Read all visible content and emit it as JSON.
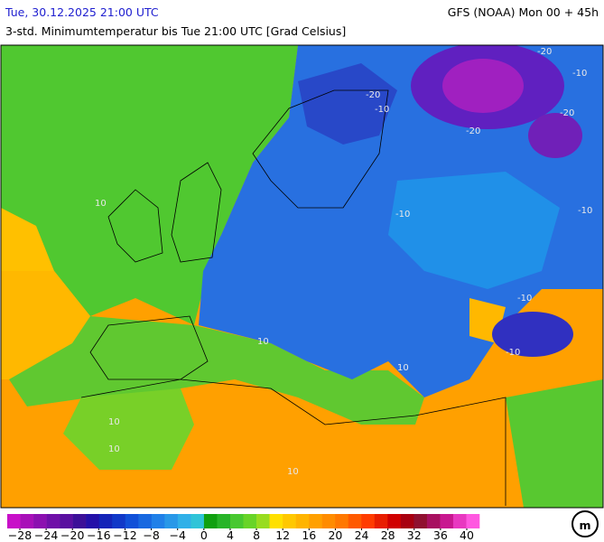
{
  "header": {
    "valid_time": "Tue, 30.12.2025 21:00 UTC",
    "model_run": "GFS (NOAA) Mon 00 + 45h",
    "description": "3-std. Minimumtemperatur bis Tue 21:00 UTC [Grad Celsius]"
  },
  "map": {
    "contour_labels": [
      -20,
      -10,
      -20,
      -10,
      -20,
      -20,
      -10,
      -10,
      10,
      -10,
      -10,
      10,
      10,
      10,
      10,
      10
    ]
  },
  "colorbar": {
    "colors": [
      "#c810c8",
      "#a810b8",
      "#8c10b0",
      "#7010a8",
      "#5a10a0",
      "#3c1098",
      "#2410a8",
      "#1424b8",
      "#1038c8",
      "#1050d8",
      "#1868e0",
      "#2080e8",
      "#2898e8",
      "#30b0e8",
      "#30c4d8",
      "#10a010",
      "#28b428",
      "#48c830",
      "#68d428",
      "#98dc20",
      "#ffe000",
      "#ffc800",
      "#ffb400",
      "#ffa000",
      "#ff8c00",
      "#ff7800",
      "#ff5a00",
      "#ff3c00",
      "#e81e00",
      "#d00000",
      "#a80010",
      "#901030",
      "#a81060",
      "#c81890",
      "#e838c0",
      "#ff58e0"
    ],
    "ticks": [
      {
        "value": -28,
        "label": "−28"
      },
      {
        "value": -24,
        "label": "−24"
      },
      {
        "value": -20,
        "label": "−20"
      },
      {
        "value": -16,
        "label": "−16"
      },
      {
        "value": -12,
        "label": "−12"
      },
      {
        "value": -8,
        "label": "−8"
      },
      {
        "value": -4,
        "label": "−4"
      },
      0,
      4,
      8,
      12,
      16,
      20,
      24,
      28,
      32,
      36,
      40
    ]
  },
  "logo": "m"
}
